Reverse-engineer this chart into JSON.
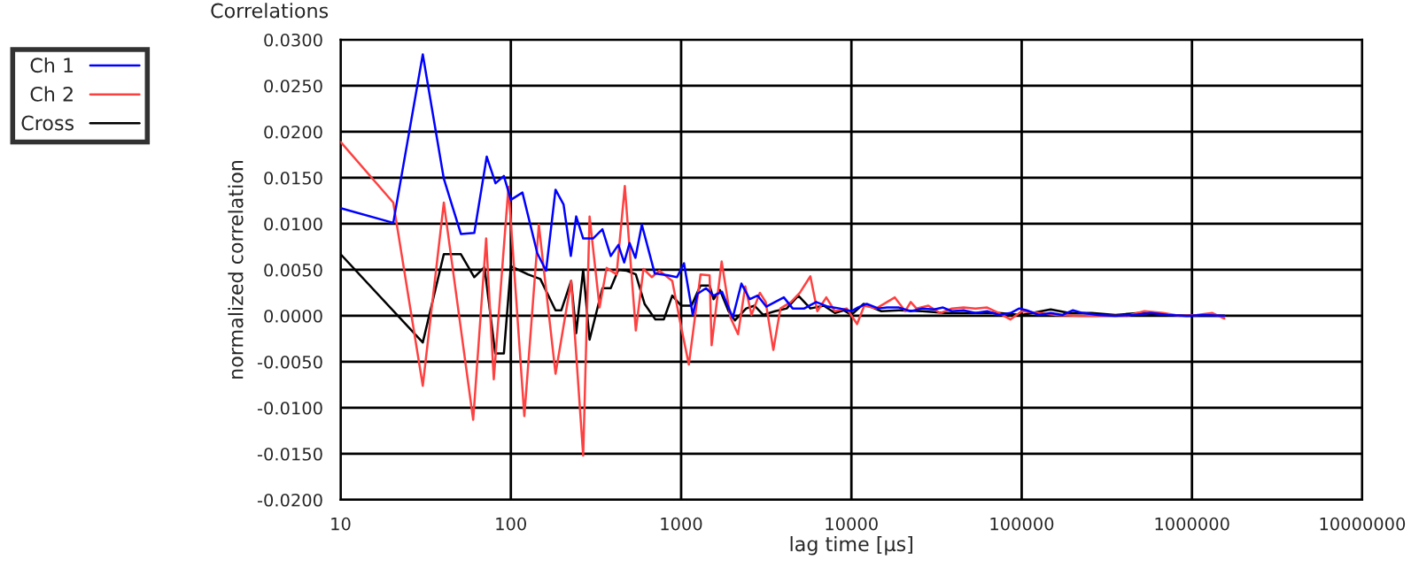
{
  "chart_data": {
    "type": "line",
    "title": "Correlations",
    "xlabel": "lag time [µs]",
    "ylabel": "normalized correlation",
    "log": "x",
    "grid": true,
    "legend": "top left",
    "line_style": "solid",
    "marker": "none",
    "xlim": [
      10,
      10000000
    ],
    "xticks": [
      10,
      100,
      1000,
      10000,
      100000,
      1000000,
      10000000
    ],
    "ylim": [
      -0.02,
      0.03
    ],
    "yticks": [
      {
        "value": -0.02,
        "label": "-0.0200"
      },
      {
        "value": -0.015,
        "label": "-0.0150"
      },
      {
        "value": -0.01,
        "label": "-0.0100"
      },
      {
        "value": -0.005,
        "label": "-0.0050"
      },
      {
        "value": 0,
        "label": "0.0000"
      },
      {
        "value": 0.005,
        "label": "0.0050"
      },
      {
        "value": 0.01,
        "label": "0.0100"
      },
      {
        "value": 0.015,
        "label": "0.0150"
      },
      {
        "value": 0.02,
        "label": "0.0200"
      },
      {
        "value": 0.025,
        "label": "0.0250"
      },
      {
        "value": 0.03,
        "label": "0.0300"
      }
    ],
    "series": [
      {
        "name": "Ch 1",
        "color": "#0000ff",
        "x": [
          10,
          20.4,
          30.4,
          40.4,
          50.9,
          61,
          72.2,
          81.3,
          91,
          100,
          117,
          143,
          161,
          183,
          204,
          225,
          242,
          266,
          304,
          345,
          386,
          428,
          463,
          498,
          539,
          588,
          700,
          840,
          946,
          1040,
          1170,
          1250,
          1400,
          1550,
          1740,
          2010,
          2260,
          2530,
          2810,
          3160,
          3560,
          4010,
          4520,
          5290,
          6210,
          7280,
          8530,
          10000,
          10900,
          12300,
          14400,
          16200,
          19000,
          22300,
          26100,
          30600,
          34500,
          38900,
          45600,
          53500,
          62700,
          73500,
          86000,
          96800,
          107000,
          126000,
          148000,
          174000,
          200000,
          229000,
          281000,
          355000,
          457000,
          575000,
          724000,
          933000,
          1180000,
          1550000
        ],
        "values": [
          0.0117,
          0.0101,
          0.0284,
          0.0149,
          0.0089,
          0.009,
          0.0173,
          0.0144,
          0.0152,
          0.0126,
          0.0134,
          0.0068,
          0.0049,
          0.0137,
          0.0121,
          0.0065,
          0.0108,
          0.0084,
          0.0084,
          0.0094,
          0.0065,
          0.0077,
          0.0058,
          0.0079,
          0.0063,
          0.0099,
          0.0046,
          0.0044,
          0.0042,
          0.0057,
          0.0001,
          0.0024,
          0.003,
          0.0022,
          0.0026,
          -0.0002,
          0.0035,
          0.0018,
          0.0022,
          0.001,
          0.0015,
          0.002,
          0.0008,
          0.0008,
          0.0015,
          0.001,
          0.0008,
          0.0005,
          0.0009,
          0.0013,
          0.0008,
          0.0009,
          0.0009,
          0.0005,
          0.0008,
          0.0007,
          0.0009,
          0.0005,
          0.0006,
          0.0003,
          0.0005,
          0.0001,
          0.0003,
          0.0008,
          0.0006,
          0.0001,
          0.0003,
          0.0001,
          0.0006,
          0.0003,
          0.0001,
          0.0,
          0.0001,
          0.0003,
          0.0001,
          0.0,
          0.0001,
          0.0
        ]
      },
      {
        "name": "Ch 2",
        "color": "#ff4040",
        "x": [
          10,
          20.4,
          30.4,
          40.4,
          60.1,
          71.6,
          79.4,
          96.8,
          120,
          146,
          183,
          226,
          266,
          290,
          332,
          365,
          418,
          467,
          542,
          601,
          673,
          745,
          887,
          1000,
          1110,
          1300,
          1470,
          1510,
          1730,
          1950,
          2160,
          2380,
          2590,
          2900,
          3140,
          3480,
          3830,
          4420,
          4980,
          5740,
          6310,
          7120,
          8000,
          9380,
          10800,
          11900,
          14000,
          18000,
          20700,
          22300,
          24100,
          28300,
          33200,
          38900,
          45600,
          53500,
          62700,
          73500,
          86000,
          100000,
          126000,
          158000,
          219000,
          417000,
          525000,
          676000,
          851000,
          1070000,
          1320000,
          1550000
        ],
        "values": [
          0.0189,
          0.0123,
          -0.0076,
          0.0123,
          -0.0113,
          0.0084,
          -0.0069,
          0.014,
          -0.0109,
          0.0099,
          -0.0063,
          0.0038,
          -0.0152,
          0.0108,
          0.0009,
          0.0052,
          0.0045,
          0.0141,
          -0.0016,
          0.0051,
          0.0042,
          0.0049,
          0.0038,
          -0.0012,
          -0.0053,
          0.0045,
          0.0044,
          -0.0032,
          0.0059,
          -0.0002,
          -0.002,
          0.0032,
          0.0001,
          0.0025,
          0.0015,
          -0.0037,
          0.0008,
          0.0015,
          0.0025,
          0.0043,
          0.0005,
          0.002,
          0.0005,
          0.0008,
          -0.0009,
          0.0011,
          0.0008,
          0.002,
          0.0005,
          0.0015,
          0.0008,
          0.0011,
          0.0003,
          0.0008,
          0.0009,
          0.0008,
          0.0009,
          0.0003,
          -0.0004,
          0.0005,
          0.0003,
          0.0001,
          0.0,
          0.0,
          0.0005,
          0.0003,
          0.0,
          0.0001,
          0.0003,
          -0.0003
        ]
      },
      {
        "name": "Cross",
        "color": "#000000",
        "x": [
          10,
          30.4,
          40.4,
          50.9,
          61,
          70,
          81,
          91,
          100,
          126,
          149,
          183,
          198,
          226,
          242,
          266,
          290,
          345,
          386,
          428,
          480,
          542,
          610,
          706,
          791,
          887,
          1000,
          1150,
          1300,
          1470,
          1550,
          1690,
          1900,
          2070,
          2410,
          2700,
          3030,
          3560,
          4170,
          4880,
          5740,
          6880,
          8000,
          9000,
          10000,
          11800,
          15000,
          19000,
          26100,
          35500,
          53500,
          73500,
          100000,
          148000,
          190000,
          257000,
          355000,
          490000,
          676000,
          933000,
          1550000
        ],
        "values": [
          0.0067,
          -0.0029,
          0.0067,
          0.0067,
          0.0042,
          0.0053,
          -0.0041,
          -0.0041,
          0.0054,
          0.0045,
          0.004,
          0.0006,
          0.0006,
          0.0038,
          -0.0019,
          0.005,
          -0.0026,
          0.003,
          0.003,
          0.005,
          0.0049,
          0.0045,
          0.0013,
          -0.0004,
          -0.0004,
          0.0022,
          0.0011,
          0.0011,
          0.0033,
          0.0033,
          0.0018,
          0.0028,
          0.0005,
          -0.0005,
          0.0008,
          0.0011,
          0.0001,
          0.0005,
          0.0008,
          0.0022,
          0.0008,
          0.0011,
          0.0003,
          0.0006,
          0.0001,
          0.0013,
          0.0005,
          0.0006,
          0.0005,
          0.0003,
          0.0003,
          0.0003,
          0.0001,
          0.0007,
          0.0003,
          0.0003,
          0.0001,
          0.0003,
          0.0001,
          0.0,
          0.0
        ]
      }
    ]
  }
}
